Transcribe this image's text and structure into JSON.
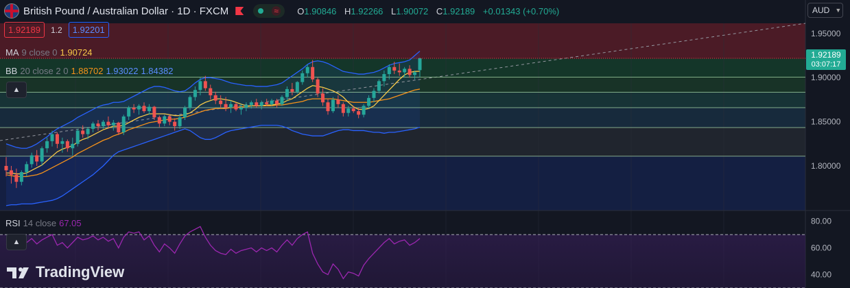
{
  "header": {
    "symbol_title": "British Pound / Australian Dollar · 1D · FXCM",
    "ohlc": [
      {
        "key": "O",
        "value": "1.90846"
      },
      {
        "key": "H",
        "value": "1.92266"
      },
      {
        "key": "L",
        "value": "1.90072"
      },
      {
        "key": "C",
        "value": "1.92189"
      },
      {
        "key": "",
        "value": "+0.01343 (+0.70%)"
      }
    ]
  },
  "trade": {
    "sell_price": "1.92189",
    "spread": "1.2",
    "buy_price": "1.92201"
  },
  "currency_selector": {
    "label": "AUD"
  },
  "indicators": {
    "ma": {
      "name": "MA",
      "params": "9 close 0",
      "value": "1.90724"
    },
    "bb": {
      "name": "BB",
      "params": "20 close 2 0",
      "values": [
        "1.88702",
        "1.93022",
        "1.84382"
      ]
    },
    "rsi": {
      "name": "RSI",
      "params": "14 close",
      "value": "67.05"
    }
  },
  "last_price": {
    "price": "1.92189",
    "countdown": "03:07:17"
  },
  "branding": {
    "logo_text": "TradingView"
  },
  "colors": {
    "bg": "#131722",
    "up": "#26a69a",
    "down": "#ef5350",
    "ma": "#f7c948",
    "bb_basis": "#f7931a",
    "bb_band": "#2962ff",
    "rsi": "#9c27b0",
    "last_price": "#22ab94",
    "sell": "#f23645",
    "buy": "#2962ff"
  },
  "chart_data": {
    "type": "candlestick",
    "y_ticks": [
      "1.95000",
      "1.90000",
      "1.85000",
      "1.80000"
    ],
    "ylim": [
      1.7495,
      1.9615
    ],
    "zones": [
      {
        "from": 1.9215,
        "to": 1.9615,
        "color": "#7a1f2a"
      },
      {
        "from": 1.9005,
        "to": 1.9215,
        "color": "#16502f"
      },
      {
        "from": 1.8835,
        "to": 1.9005,
        "color": "#1d4a2c"
      },
      {
        "from": 1.866,
        "to": 1.8835,
        "color": "#1c4a47"
      },
      {
        "from": 1.8435,
        "to": 1.866,
        "color": "#1c3a52"
      },
      {
        "from": 1.811,
        "to": 1.8435,
        "color": "#2b3138"
      },
      {
        "from": 1.7495,
        "to": 1.811,
        "color": "#16275c"
      }
    ],
    "fib_lines": [
      1.9215,
      1.9005,
      1.8835,
      1.866,
      1.8435,
      1.811
    ],
    "candles": [
      [
        1.8,
        1.81,
        1.788,
        1.795
      ],
      [
        1.795,
        1.8,
        1.78,
        1.79
      ],
      [
        1.79,
        1.797,
        1.775,
        1.782
      ],
      [
        1.782,
        1.795,
        1.778,
        1.793
      ],
      [
        1.793,
        1.805,
        1.788,
        1.802
      ],
      [
        1.802,
        1.815,
        1.798,
        1.812
      ],
      [
        1.812,
        1.818,
        1.8,
        1.805
      ],
      [
        1.805,
        1.822,
        1.8,
        1.82
      ],
      [
        1.82,
        1.832,
        1.815,
        1.828
      ],
      [
        1.828,
        1.84,
        1.822,
        1.836
      ],
      [
        1.836,
        1.838,
        1.82,
        1.825
      ],
      [
        1.825,
        1.832,
        1.815,
        1.828
      ],
      [
        1.828,
        1.83,
        1.816,
        1.82
      ],
      [
        1.82,
        1.832,
        1.812,
        1.825
      ],
      [
        1.825,
        1.842,
        1.822,
        1.84
      ],
      [
        1.84,
        1.846,
        1.832,
        1.836
      ],
      [
        1.836,
        1.844,
        1.83,
        1.842
      ],
      [
        1.842,
        1.85,
        1.838,
        1.848
      ],
      [
        1.848,
        1.852,
        1.84,
        1.845
      ],
      [
        1.845,
        1.852,
        1.842,
        1.85
      ],
      [
        1.85,
        1.856,
        1.842,
        1.846
      ],
      [
        1.846,
        1.852,
        1.84,
        1.849
      ],
      [
        1.849,
        1.85,
        1.835,
        1.838
      ],
      [
        1.838,
        1.858,
        1.835,
        1.856
      ],
      [
        1.856,
        1.868,
        1.852,
        1.866
      ],
      [
        1.866,
        1.87,
        1.86,
        1.864
      ],
      [
        1.864,
        1.87,
        1.858,
        1.868
      ],
      [
        1.868,
        1.872,
        1.86,
        1.862
      ],
      [
        1.862,
        1.87,
        1.858,
        1.867
      ],
      [
        1.867,
        1.868,
        1.852,
        1.855
      ],
      [
        1.855,
        1.857,
        1.844,
        1.848
      ],
      [
        1.848,
        1.858,
        1.845,
        1.856
      ],
      [
        1.856,
        1.858,
        1.846,
        1.85
      ],
      [
        1.85,
        1.854,
        1.84,
        1.845
      ],
      [
        1.845,
        1.858,
        1.842,
        1.855
      ],
      [
        1.855,
        1.868,
        1.852,
        1.866
      ],
      [
        1.866,
        1.88,
        1.863,
        1.878
      ],
      [
        1.878,
        1.89,
        1.874,
        1.886
      ],
      [
        1.886,
        1.9,
        1.88,
        1.896
      ],
      [
        1.896,
        1.902,
        1.885,
        1.888
      ],
      [
        1.888,
        1.892,
        1.875,
        1.88
      ],
      [
        1.88,
        1.884,
        1.87,
        1.874
      ],
      [
        1.874,
        1.88,
        1.866,
        1.87
      ],
      [
        1.87,
        1.878,
        1.862,
        1.866
      ],
      [
        1.866,
        1.874,
        1.86,
        1.87
      ],
      [
        1.87,
        1.872,
        1.862,
        1.864
      ],
      [
        1.864,
        1.87,
        1.858,
        1.866
      ],
      [
        1.866,
        1.872,
        1.862,
        1.869
      ],
      [
        1.869,
        1.874,
        1.865,
        1.872
      ],
      [
        1.872,
        1.876,
        1.866,
        1.868
      ],
      [
        1.868,
        1.874,
        1.864,
        1.872
      ],
      [
        1.872,
        1.876,
        1.868,
        1.87
      ],
      [
        1.87,
        1.876,
        1.868,
        1.874
      ],
      [
        1.874,
        1.876,
        1.866,
        1.87
      ],
      [
        1.87,
        1.88,
        1.868,
        1.878
      ],
      [
        1.878,
        1.89,
        1.874,
        1.887
      ],
      [
        1.887,
        1.894,
        1.88,
        1.884
      ],
      [
        1.884,
        1.896,
        1.882,
        1.895
      ],
      [
        1.895,
        1.908,
        1.892,
        1.905
      ],
      [
        1.905,
        1.915,
        1.9,
        1.912
      ],
      [
        1.912,
        1.92,
        1.895,
        1.898
      ],
      [
        1.898,
        1.9,
        1.878,
        1.882
      ],
      [
        1.882,
        1.888,
        1.868,
        1.872
      ],
      [
        1.872,
        1.876,
        1.858,
        1.862
      ],
      [
        1.862,
        1.878,
        1.86,
        1.875
      ],
      [
        1.875,
        1.88,
        1.866,
        1.87
      ],
      [
        1.87,
        1.872,
        1.856,
        1.86
      ],
      [
        1.86,
        1.868,
        1.856,
        1.865
      ],
      [
        1.865,
        1.868,
        1.86,
        1.862
      ],
      [
        1.862,
        1.866,
        1.854,
        1.858
      ],
      [
        1.858,
        1.87,
        1.855,
        1.868
      ],
      [
        1.868,
        1.88,
        1.865,
        1.877
      ],
      [
        1.877,
        1.888,
        1.872,
        1.885
      ],
      [
        1.885,
        1.898,
        1.882,
        1.896
      ],
      [
        1.896,
        1.908,
        1.89,
        1.904
      ],
      [
        1.904,
        1.915,
        1.898,
        1.912
      ],
      [
        1.912,
        1.918,
        1.904,
        1.908
      ],
      [
        1.908,
        1.916,
        1.902,
        1.906
      ],
      [
        1.906,
        1.912,
        1.9,
        1.91
      ],
      [
        1.91,
        1.914,
        1.9,
        1.903
      ],
      [
        1.903,
        1.908,
        1.898,
        1.906
      ],
      [
        1.9085,
        1.9227,
        1.9007,
        1.9219
      ]
    ],
    "ma9": [
      1.792,
      1.792,
      1.791,
      1.791,
      1.792,
      1.795,
      1.798,
      1.801,
      1.806,
      1.811,
      1.816,
      1.819,
      1.821,
      1.823,
      1.827,
      1.83,
      1.832,
      1.835,
      1.838,
      1.841,
      1.843,
      1.845,
      1.845,
      1.846,
      1.849,
      1.852,
      1.855,
      1.857,
      1.859,
      1.859,
      1.859,
      1.859,
      1.858,
      1.857,
      1.857,
      1.858,
      1.86,
      1.864,
      1.869,
      1.872,
      1.874,
      1.876,
      1.876,
      1.875,
      1.874,
      1.872,
      1.87,
      1.868,
      1.868,
      1.868,
      1.868,
      1.869,
      1.869,
      1.87,
      1.871,
      1.874,
      1.876,
      1.88,
      1.884,
      1.888,
      1.891,
      1.89,
      1.889,
      1.887,
      1.885,
      1.882,
      1.878,
      1.872,
      1.867,
      1.864,
      1.864,
      1.865,
      1.868,
      1.874,
      1.88,
      1.886,
      1.892,
      1.898,
      1.903,
      1.906,
      1.907,
      1.9072
    ],
    "bb_basis": [
      1.79,
      1.789,
      1.788,
      1.788,
      1.788,
      1.789,
      1.79,
      1.792,
      1.795,
      1.798,
      1.801,
      1.804,
      1.807,
      1.81,
      1.814,
      1.817,
      1.82,
      1.823,
      1.826,
      1.829,
      1.831,
      1.834,
      1.836,
      1.838,
      1.841,
      1.843,
      1.845,
      1.847,
      1.849,
      1.85,
      1.851,
      1.852,
      1.853,
      1.853,
      1.854,
      1.855,
      1.857,
      1.859,
      1.861,
      1.863,
      1.864,
      1.865,
      1.865,
      1.865,
      1.866,
      1.866,
      1.867,
      1.867,
      1.868,
      1.868,
      1.868,
      1.868,
      1.868,
      1.869,
      1.869,
      1.87,
      1.871,
      1.872,
      1.873,
      1.875,
      1.876,
      1.876,
      1.876,
      1.876,
      1.876,
      1.875,
      1.874,
      1.873,
      1.872,
      1.872,
      1.872,
      1.872,
      1.873,
      1.874,
      1.875,
      1.876,
      1.878,
      1.88,
      1.882,
      1.884,
      1.886,
      1.887
    ],
    "bb_upper": [
      1.825,
      1.823,
      1.821,
      1.82,
      1.82,
      1.822,
      1.825,
      1.829,
      1.833,
      1.838,
      1.842,
      1.845,
      1.848,
      1.851,
      1.855,
      1.858,
      1.861,
      1.864,
      1.867,
      1.869,
      1.87,
      1.872,
      1.872,
      1.873,
      1.876,
      1.879,
      1.882,
      1.885,
      1.888,
      1.89,
      1.89,
      1.889,
      1.887,
      1.885,
      1.884,
      1.885,
      1.889,
      1.894,
      1.898,
      1.9,
      1.9,
      1.899,
      1.898,
      1.896,
      1.894,
      1.893,
      1.892,
      1.891,
      1.891,
      1.89,
      1.89,
      1.89,
      1.891,
      1.892,
      1.894,
      1.898,
      1.902,
      1.906,
      1.91,
      1.915,
      1.918,
      1.919,
      1.918,
      1.916,
      1.913,
      1.91,
      1.907,
      1.906,
      1.905,
      1.904,
      1.904,
      1.905,
      1.906,
      1.908,
      1.911,
      1.914,
      1.916,
      1.917,
      1.918,
      1.92,
      1.925,
      1.93
    ],
    "bb_lower": [
      1.755,
      1.756,
      1.756,
      1.757,
      1.757,
      1.757,
      1.758,
      1.759,
      1.76,
      1.761,
      1.763,
      1.766,
      1.77,
      1.774,
      1.778,
      1.782,
      1.786,
      1.79,
      1.795,
      1.8,
      1.806,
      1.812,
      1.816,
      1.818,
      1.82,
      1.822,
      1.824,
      1.826,
      1.828,
      1.83,
      1.832,
      1.834,
      1.836,
      1.838,
      1.84,
      1.842,
      1.84,
      1.836,
      1.832,
      1.83,
      1.83,
      1.832,
      1.835,
      1.838,
      1.84,
      1.841,
      1.842,
      1.843,
      1.844,
      1.845,
      1.846,
      1.846,
      1.846,
      1.846,
      1.845,
      1.843,
      1.84,
      1.838,
      1.836,
      1.835,
      1.834,
      1.834,
      1.834,
      1.836,
      1.838,
      1.84,
      1.841,
      1.841,
      1.84,
      1.84,
      1.84,
      1.839,
      1.838,
      1.838,
      1.837,
      1.838,
      1.838,
      1.839,
      1.84,
      1.841,
      1.842,
      1.8438
    ],
    "rsi": {
      "ticks": [
        "80.00",
        "60.00",
        "40.00"
      ],
      "ylim": [
        30,
        88
      ],
      "values": [
        63,
        62,
        60,
        62,
        64,
        67,
        63,
        66,
        68,
        70,
        62,
        64,
        60,
        64,
        68,
        66,
        67,
        69,
        66,
        68,
        65,
        67,
        60,
        68,
        72,
        71,
        72,
        66,
        69,
        62,
        57,
        63,
        60,
        56,
        63,
        69,
        72,
        74,
        76,
        68,
        62,
        58,
        56,
        55,
        59,
        56,
        58,
        59,
        60,
        57,
        60,
        58,
        60,
        57,
        62,
        66,
        62,
        67,
        70,
        72,
        56,
        48,
        42,
        40,
        48,
        44,
        37,
        42,
        41,
        39,
        47,
        52,
        56,
        60,
        64,
        67,
        63,
        65,
        66,
        62,
        64,
        67.05
      ]
    }
  }
}
